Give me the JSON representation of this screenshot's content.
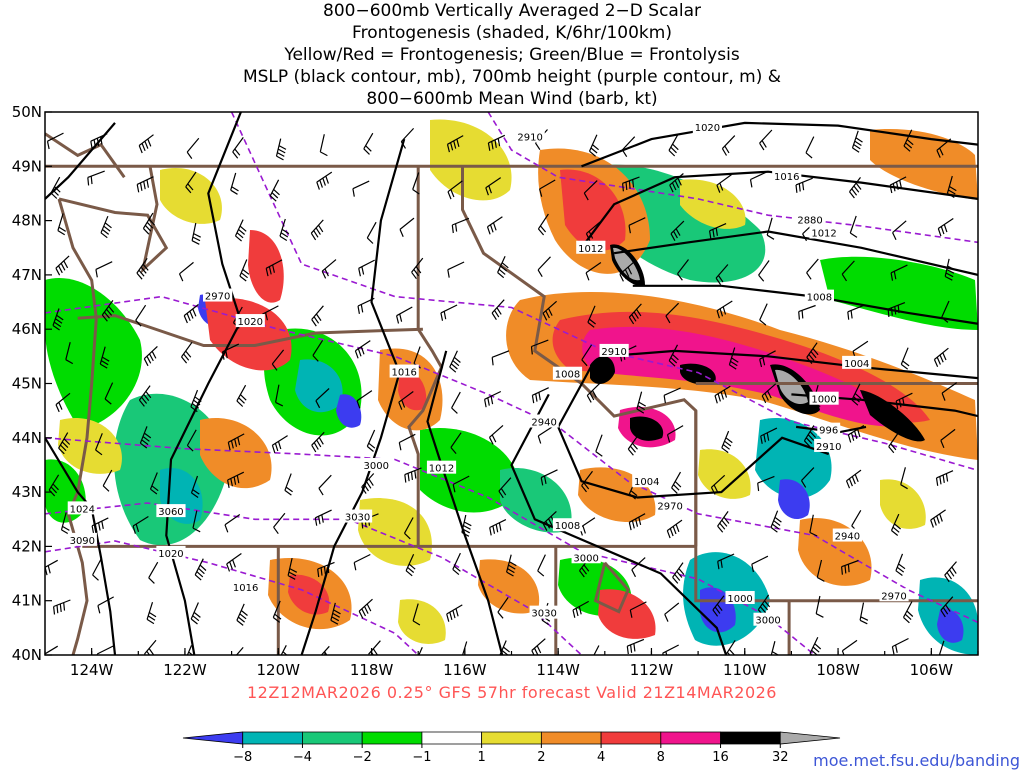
{
  "title_lines": [
    "800−600mb Vertically Averaged 2−D Scalar",
    "Frontogenesis (shaded, K/6hr/100km)",
    "Yellow/Red = Frontogenesis;  Green/Blue = Frontolysis",
    "MSLP (black contour, mb), 700mb height (purple contour, m) &",
    "800−600mb Mean Wind (barb, kt)"
  ],
  "axes": {
    "lon_labels": [
      "124W",
      "122W",
      "120W",
      "118W",
      "116W",
      "114W",
      "112W",
      "110W",
      "108W",
      "106W"
    ],
    "lat_labels": [
      "50N",
      "49N",
      "48N",
      "47N",
      "46N",
      "45N",
      "44N",
      "43N",
      "42N",
      "41N",
      "40N"
    ]
  },
  "map": {
    "lon_range": [
      -125,
      -105
    ],
    "lat_range": [
      40,
      50
    ],
    "state_line_color": "#7a5a48",
    "mslp_line_color": "#000000",
    "height_line_color": "#9a1ad1",
    "mslp_labels": [
      {
        "text": "1020",
        "lon": -110.8,
        "lat": 49.72
      },
      {
        "text": "1016",
        "lon": -109.1,
        "lat": 48.82
      },
      {
        "text": "1012",
        "lon": -108.3,
        "lat": 47.78
      },
      {
        "text": "1012",
        "lon": -113.3,
        "lat": 47.5
      },
      {
        "text": "1008",
        "lon": -108.4,
        "lat": 46.6
      },
      {
        "text": "1004",
        "lon": -107.6,
        "lat": 45.38
      },
      {
        "text": "1000",
        "lon": -108.3,
        "lat": 44.72
      },
      {
        "text": "996",
        "lon": -108.2,
        "lat": 44.15
      },
      {
        "text": "1008",
        "lon": -113.8,
        "lat": 45.18
      },
      {
        "text": "1004",
        "lon": -112.1,
        "lat": 43.2
      },
      {
        "text": "1008",
        "lon": -113.8,
        "lat": 42.39
      },
      {
        "text": "1012",
        "lon": -116.5,
        "lat": 43.45
      },
      {
        "text": "1016",
        "lon": -117.3,
        "lat": 45.22
      },
      {
        "text": "1020",
        "lon": -120.6,
        "lat": 46.15
      },
      {
        "text": "1024",
        "lon": -124.2,
        "lat": 42.7
      },
      {
        "text": "1020",
        "lon": -122.3,
        "lat": 41.88
      },
      {
        "text": "1016",
        "lon": -120.7,
        "lat": 41.25
      },
      {
        "text": "1000",
        "lon": -110.1,
        "lat": 41.05
      }
    ],
    "height_labels": [
      {
        "text": "2910",
        "lon": -114.6,
        "lat": 49.55
      },
      {
        "text": "2880",
        "lon": -108.6,
        "lat": 48.02
      },
      {
        "text": "2970",
        "lon": -121.3,
        "lat": 46.62
      },
      {
        "text": "2910",
        "lon": -112.8,
        "lat": 45.6
      },
      {
        "text": "2940",
        "lon": -114.3,
        "lat": 44.3
      },
      {
        "text": "2910",
        "lon": -108.2,
        "lat": 43.85
      },
      {
        "text": "3000",
        "lon": -117.9,
        "lat": 43.5
      },
      {
        "text": "3060",
        "lon": -122.3,
        "lat": 42.65
      },
      {
        "text": "3030",
        "lon": -118.3,
        "lat": 42.55
      },
      {
        "text": "3090",
        "lon": -124.2,
        "lat": 42.12
      },
      {
        "text": "2970",
        "lon": -111.6,
        "lat": 42.75
      },
      {
        "text": "3000",
        "lon": -113.4,
        "lat": 41.8
      },
      {
        "text": "2940",
        "lon": -107.8,
        "lat": 42.2
      },
      {
        "text": "3030",
        "lon": -114.3,
        "lat": 40.78
      },
      {
        "text": "3000",
        "lon": -109.5,
        "lat": 40.65
      },
      {
        "text": "2970",
        "lon": -106.8,
        "lat": 41.1
      }
    ]
  },
  "colorbar": {
    "colors": [
      "#3c3cf0",
      "#00b4b4",
      "#19c878",
      "#00dc00",
      "#ffffff",
      "#e6dc32",
      "#f08c28",
      "#f03c3c",
      "#f0148c",
      "#000000",
      "#aaaaaa"
    ],
    "labels": [
      "−8",
      "−4",
      "−2",
      "−1",
      "1",
      "2",
      "4",
      "8",
      "16",
      "32"
    ]
  },
  "footer": {
    "run_info": "12Z12MAR2026 0.25° GFS 57hr forecast Valid 21Z14MAR2026",
    "website": "moe.met.fsu.edu/banding"
  }
}
